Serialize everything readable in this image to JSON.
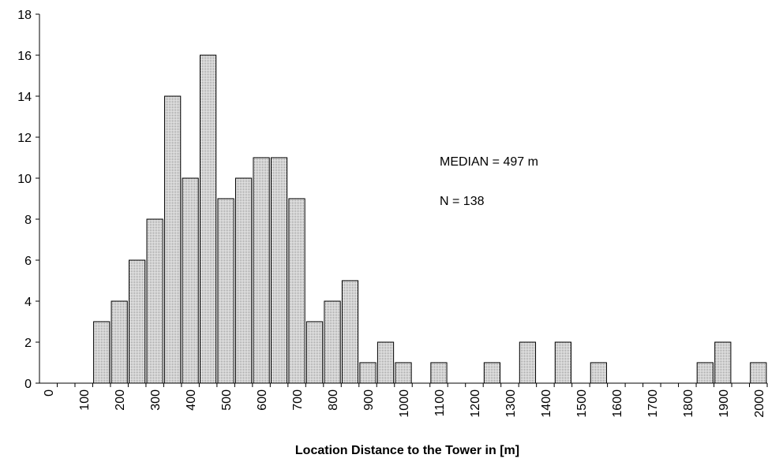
{
  "chart_data": {
    "type": "bar",
    "x_label": "Location Distance to the Tower in [m]",
    "annotations": [
      "MEDIAN = 497 m",
      "N = 138"
    ],
    "categories": [
      "0",
      null,
      "100",
      null,
      "200",
      null,
      "300",
      null,
      "400",
      null,
      "500",
      null,
      "600",
      null,
      "700",
      null,
      "800",
      null,
      "900",
      null,
      "1000",
      null,
      "1100",
      null,
      "1200",
      null,
      "1300",
      null,
      "1400",
      null,
      "1500",
      null,
      "1600",
      null,
      "1700",
      null,
      "1800",
      null,
      "1900",
      null,
      "2000"
    ],
    "values": [
      0,
      0,
      0,
      3,
      4,
      6,
      8,
      14,
      10,
      16,
      9,
      10,
      11,
      11,
      9,
      3,
      4,
      5,
      1,
      2,
      1,
      0,
      1,
      0,
      0,
      1,
      0,
      2,
      0,
      2,
      0,
      1,
      0,
      0,
      0,
      0,
      0,
      1,
      2,
      0,
      1
    ],
    "color": "#c8c8c8",
    "ylim": [
      0,
      18
    ],
    "yticks": [
      0,
      2,
      4,
      6,
      8,
      10,
      12,
      14,
      16,
      18
    ]
  }
}
